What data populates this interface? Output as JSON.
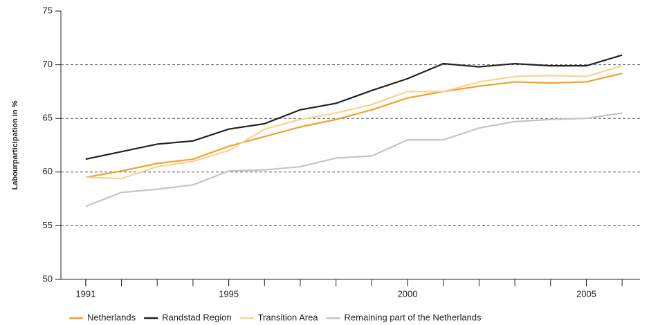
{
  "chart_data": {
    "type": "line",
    "y_label": "Labourparticipation in %",
    "x": [
      1991,
      1992,
      1993,
      1994,
      1995,
      1996,
      1997,
      1998,
      1999,
      2000,
      2001,
      2002,
      2003,
      2004,
      2005,
      2006
    ],
    "series": [
      {
        "name": "Netherlands",
        "color": "#f0a02c",
        "values": [
          59.5,
          60.1,
          60.8,
          61.2,
          62.4,
          63.3,
          64.2,
          64.9,
          65.8,
          66.9,
          67.5,
          68.0,
          68.4,
          68.3,
          68.4,
          69.2
        ]
      },
      {
        "name": "Randstad Region",
        "color": "#231f20",
        "values": [
          61.2,
          61.9,
          62.6,
          62.9,
          64.0,
          64.5,
          65.8,
          66.4,
          67.6,
          68.7,
          70.1,
          69.8,
          70.1,
          69.9,
          69.9,
          70.9
        ]
      },
      {
        "name": "Transition Area",
        "color": "#fcd18e",
        "values": [
          59.5,
          59.4,
          60.5,
          61.0,
          62.0,
          64.0,
          64.9,
          65.5,
          66.3,
          67.5,
          67.5,
          68.4,
          68.9,
          69.0,
          68.9,
          69.9
        ]
      },
      {
        "name": "Remaining part of the Netherlands",
        "color": "#c4c4c4",
        "values": [
          56.8,
          58.1,
          58.4,
          58.8,
          60.1,
          60.2,
          60.5,
          61.3,
          61.5,
          63.0,
          63.0,
          64.1,
          64.7,
          64.9,
          65.0,
          65.5
        ]
      }
    ],
    "xlim": [
      1990.5,
      2006.5
    ],
    "xticks": [
      1991,
      1995,
      2000,
      2005
    ],
    "ylim": [
      50,
      75
    ],
    "yticks": [
      50,
      55,
      60,
      65,
      70,
      75
    ],
    "grid": true,
    "legend": "bottom"
  }
}
